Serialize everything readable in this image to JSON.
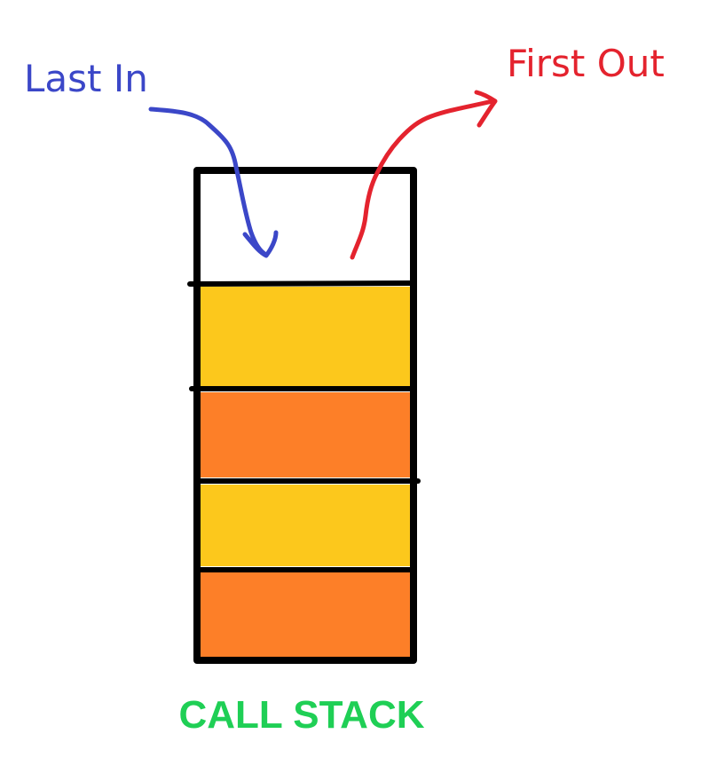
{
  "labels": {
    "push": "Last In",
    "pop": "First Out",
    "caption": "CALL STACK"
  },
  "colors": {
    "push_arrow": "#3b47c8",
    "pop_arrow": "#e4232e",
    "caption": "#1fcf55",
    "frame_yellow": "#fcc81c",
    "frame_orange": "#fd7f28",
    "outline": "#000000",
    "background": "#ffffff"
  },
  "stack": {
    "slots": [
      {
        "state": "empty"
      },
      {
        "state": "frame",
        "color": "yellow"
      },
      {
        "state": "frame",
        "color": "orange"
      },
      {
        "state": "frame",
        "color": "yellow"
      },
      {
        "state": "frame",
        "color": "orange"
      }
    ]
  }
}
